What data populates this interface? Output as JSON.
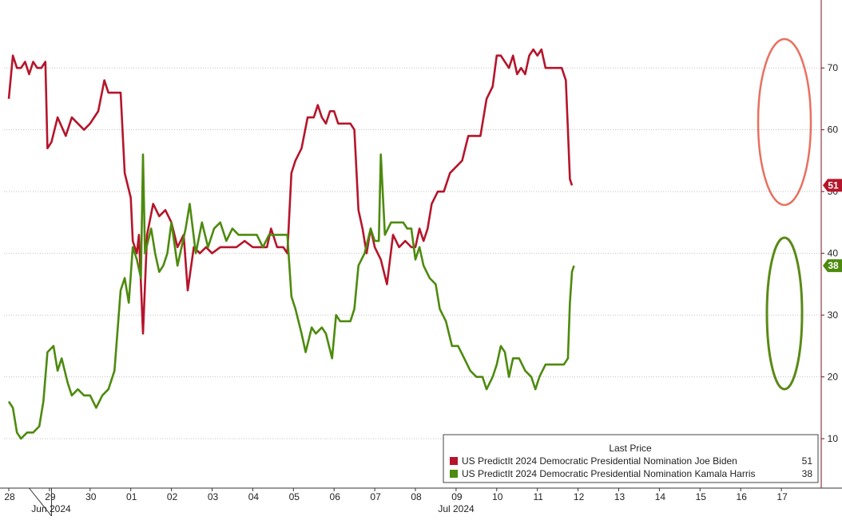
{
  "chart_data": {
    "type": "line",
    "legend": {
      "header": "Last Price",
      "placement": "bottom-right",
      "entries": [
        {
          "label": "US PredictIt 2024 Democratic Presidential Nomination Joe Biden",
          "value": "51",
          "color": "#b5152b"
        },
        {
          "label": "US PredictIt 2024 Democratic Presidential Nomination Kamala Harris",
          "value": "38",
          "color": "#4d8a0e"
        }
      ]
    },
    "x_ticks": [
      "28",
      "29",
      "30",
      "01",
      "02",
      "03",
      "04",
      "05",
      "06",
      "07",
      "08",
      "09",
      "10",
      "11",
      "12",
      "13",
      "14",
      "15",
      "16",
      "17"
    ],
    "month_labels": [
      "Jun 2024",
      "Jul 2024"
    ],
    "y_axis": {
      "side": "right",
      "range": [
        2,
        81
      ],
      "ticks": [
        "10",
        "20",
        "30",
        "40",
        "50",
        "60",
        "70"
      ],
      "grid": true
    },
    "series": [
      {
        "name": "US PredictIt 2024 Democratic Presidential Nomination Joe Biden",
        "color": "#b5152b",
        "last": "51",
        "points": [
          [
            0.0,
            65
          ],
          [
            0.1,
            72
          ],
          [
            0.2,
            70
          ],
          [
            0.3,
            70
          ],
          [
            0.4,
            71
          ],
          [
            0.5,
            69
          ],
          [
            0.6,
            71
          ],
          [
            0.7,
            70
          ],
          [
            0.8,
            70
          ],
          [
            0.9,
            71
          ],
          [
            0.95,
            57
          ],
          [
            1.05,
            58
          ],
          [
            1.2,
            62
          ],
          [
            1.4,
            59
          ],
          [
            1.55,
            62
          ],
          [
            1.7,
            61
          ],
          [
            1.85,
            60
          ],
          [
            2.0,
            61
          ],
          [
            2.2,
            63
          ],
          [
            2.35,
            68
          ],
          [
            2.45,
            66
          ],
          [
            2.6,
            66
          ],
          [
            2.75,
            66
          ],
          [
            2.85,
            53
          ],
          [
            3.0,
            49
          ],
          [
            3.05,
            42
          ],
          [
            3.15,
            40
          ],
          [
            3.2,
            43
          ],
          [
            3.3,
            27
          ],
          [
            3.4,
            43
          ],
          [
            3.55,
            48
          ],
          [
            3.7,
            46
          ],
          [
            3.85,
            47
          ],
          [
            4.0,
            45
          ],
          [
            4.15,
            41
          ],
          [
            4.3,
            43
          ],
          [
            4.4,
            34
          ],
          [
            4.55,
            41
          ],
          [
            4.7,
            40
          ],
          [
            4.85,
            41
          ],
          [
            5.0,
            40
          ],
          [
            5.2,
            41
          ],
          [
            5.4,
            41
          ],
          [
            5.6,
            41
          ],
          [
            5.8,
            42
          ],
          [
            6.0,
            41
          ],
          [
            6.2,
            41
          ],
          [
            6.35,
            41
          ],
          [
            6.45,
            44
          ],
          [
            6.6,
            41
          ],
          [
            6.75,
            41
          ],
          [
            6.85,
            40
          ],
          [
            6.95,
            53
          ],
          [
            7.05,
            55
          ],
          [
            7.2,
            57
          ],
          [
            7.35,
            62
          ],
          [
            7.5,
            62
          ],
          [
            7.6,
            64
          ],
          [
            7.7,
            62
          ],
          [
            7.8,
            61
          ],
          [
            7.9,
            63
          ],
          [
            8.0,
            63
          ],
          [
            8.1,
            61
          ],
          [
            8.2,
            61
          ],
          [
            8.3,
            61
          ],
          [
            8.4,
            61
          ],
          [
            8.5,
            60
          ],
          [
            8.6,
            47
          ],
          [
            8.7,
            44
          ],
          [
            8.8,
            40
          ],
          [
            8.9,
            44
          ],
          [
            9.0,
            41
          ],
          [
            9.15,
            39
          ],
          [
            9.3,
            35
          ],
          [
            9.45,
            43
          ],
          [
            9.6,
            41
          ],
          [
            9.75,
            42
          ],
          [
            9.9,
            41
          ],
          [
            10.0,
            41
          ],
          [
            10.1,
            44
          ],
          [
            10.2,
            42
          ],
          [
            10.3,
            44
          ],
          [
            10.4,
            48
          ],
          [
            10.55,
            50
          ],
          [
            10.7,
            50
          ],
          [
            10.85,
            53
          ],
          [
            11.0,
            54
          ],
          [
            11.15,
            55
          ],
          [
            11.3,
            59
          ],
          [
            11.45,
            59
          ],
          [
            11.6,
            59
          ],
          [
            11.75,
            65
          ],
          [
            11.9,
            67
          ],
          [
            12.0,
            72
          ],
          [
            12.1,
            72
          ],
          [
            12.2,
            71
          ],
          [
            12.3,
            70
          ],
          [
            12.4,
            72
          ],
          [
            12.5,
            69
          ],
          [
            12.6,
            70
          ],
          [
            12.7,
            69
          ],
          [
            12.8,
            72
          ],
          [
            12.9,
            73
          ],
          [
            13.0,
            72
          ],
          [
            13.1,
            73
          ],
          [
            13.2,
            70
          ],
          [
            13.3,
            70
          ],
          [
            13.4,
            70
          ],
          [
            13.5,
            70
          ],
          [
            13.6,
            70
          ],
          [
            13.7,
            68
          ],
          [
            13.75,
            60
          ],
          [
            13.8,
            52
          ],
          [
            13.85,
            51
          ]
        ]
      },
      {
        "name": "US PredictIt 2024 Democratic Presidential Nomination Kamala Harris",
        "color": "#4d8a0e",
        "last": "38",
        "points": [
          [
            0.0,
            16
          ],
          [
            0.1,
            15
          ],
          [
            0.2,
            11
          ],
          [
            0.3,
            10
          ],
          [
            0.45,
            11
          ],
          [
            0.6,
            11
          ],
          [
            0.75,
            12
          ],
          [
            0.85,
            16
          ],
          [
            0.95,
            24
          ],
          [
            1.1,
            25
          ],
          [
            1.2,
            21
          ],
          [
            1.3,
            23
          ],
          [
            1.45,
            19
          ],
          [
            1.55,
            17
          ],
          [
            1.7,
            18
          ],
          [
            1.85,
            17
          ],
          [
            2.0,
            17
          ],
          [
            2.15,
            15
          ],
          [
            2.3,
            17
          ],
          [
            2.45,
            18
          ],
          [
            2.6,
            21
          ],
          [
            2.75,
            34
          ],
          [
            2.85,
            36
          ],
          [
            2.95,
            32
          ],
          [
            3.05,
            41
          ],
          [
            3.15,
            39
          ],
          [
            3.25,
            36
          ],
          [
            3.3,
            56
          ],
          [
            3.35,
            40
          ],
          [
            3.5,
            44
          ],
          [
            3.6,
            40
          ],
          [
            3.7,
            37
          ],
          [
            3.8,
            38
          ],
          [
            3.9,
            40
          ],
          [
            4.0,
            45
          ],
          [
            4.15,
            38
          ],
          [
            4.25,
            41
          ],
          [
            4.35,
            44
          ],
          [
            4.45,
            48
          ],
          [
            4.6,
            40
          ],
          [
            4.75,
            45
          ],
          [
            4.9,
            41
          ],
          [
            5.05,
            44
          ],
          [
            5.2,
            45
          ],
          [
            5.35,
            42
          ],
          [
            5.5,
            44
          ],
          [
            5.65,
            43
          ],
          [
            5.8,
            43
          ],
          [
            5.95,
            43
          ],
          [
            6.1,
            43
          ],
          [
            6.25,
            41
          ],
          [
            6.4,
            43
          ],
          [
            6.55,
            43
          ],
          [
            6.7,
            43
          ],
          [
            6.85,
            43
          ],
          [
            6.95,
            33
          ],
          [
            7.05,
            31
          ],
          [
            7.2,
            27
          ],
          [
            7.3,
            24
          ],
          [
            7.45,
            28
          ],
          [
            7.55,
            27
          ],
          [
            7.7,
            28
          ],
          [
            7.8,
            27
          ],
          [
            7.95,
            23
          ],
          [
            8.05,
            30
          ],
          [
            8.15,
            29
          ],
          [
            8.3,
            29
          ],
          [
            8.4,
            29
          ],
          [
            8.5,
            31
          ],
          [
            8.6,
            38
          ],
          [
            8.75,
            40
          ],
          [
            8.9,
            44
          ],
          [
            9.0,
            42
          ],
          [
            9.1,
            42
          ],
          [
            9.15,
            56
          ],
          [
            9.25,
            43
          ],
          [
            9.4,
            45
          ],
          [
            9.55,
            45
          ],
          [
            9.7,
            45
          ],
          [
            9.8,
            44
          ],
          [
            9.9,
            44
          ],
          [
            10.0,
            39
          ],
          [
            10.1,
            41
          ],
          [
            10.2,
            38
          ],
          [
            10.35,
            36
          ],
          [
            10.5,
            35
          ],
          [
            10.6,
            31
          ],
          [
            10.75,
            29
          ],
          [
            10.9,
            25
          ],
          [
            11.05,
            25
          ],
          [
            11.2,
            23
          ],
          [
            11.35,
            21
          ],
          [
            11.5,
            20
          ],
          [
            11.65,
            20
          ],
          [
            11.75,
            18
          ],
          [
            11.9,
            20
          ],
          [
            12.0,
            22
          ],
          [
            12.1,
            25
          ],
          [
            12.2,
            24
          ],
          [
            12.3,
            20
          ],
          [
            12.4,
            23
          ],
          [
            12.55,
            23
          ],
          [
            12.7,
            21
          ],
          [
            12.85,
            20
          ],
          [
            12.95,
            18
          ],
          [
            13.05,
            20
          ],
          [
            13.2,
            22
          ],
          [
            13.35,
            22
          ],
          [
            13.5,
            22
          ],
          [
            13.65,
            22
          ],
          [
            13.75,
            23
          ],
          [
            13.8,
            32
          ],
          [
            13.85,
            37
          ],
          [
            13.9,
            38
          ]
        ]
      }
    ]
  },
  "colors": {
    "biden": "#b5152b",
    "harris": "#4d8a0e",
    "grid": "#c0c0c0",
    "axis": "#7a1020"
  }
}
